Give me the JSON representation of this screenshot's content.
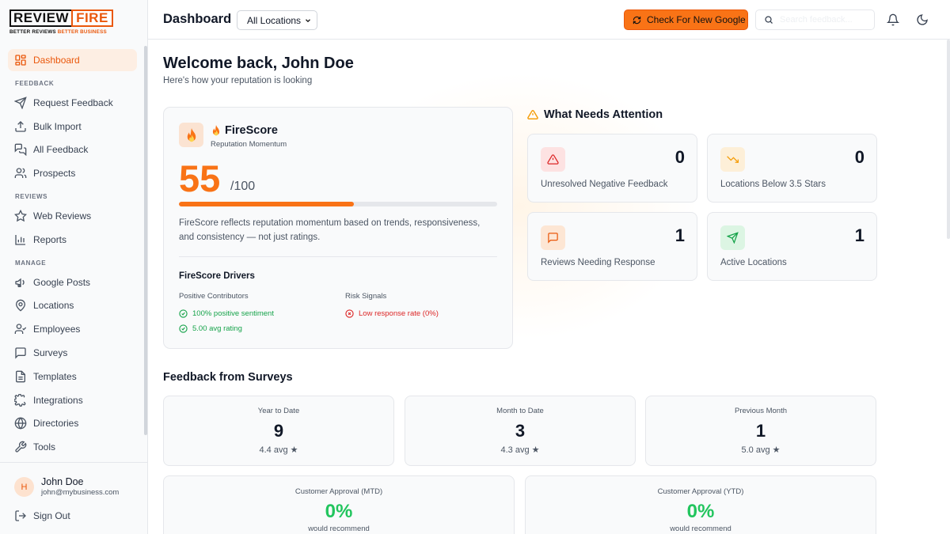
{
  "brand": {
    "logo_left": "REVIEW",
    "logo_right": "FIRE",
    "tagline_black": "BETTER REVIEWS",
    "tagline_orange": "BETTER BUSINESS",
    "accent": "#f97316"
  },
  "sidebar": {
    "dashboard": "Dashboard",
    "sections": {
      "feedback": "FEEDBACK",
      "reviews": "REVIEWS",
      "manage": "MANAGE"
    },
    "feedback_items": [
      {
        "label": "Request Feedback",
        "icon": "send-icon"
      },
      {
        "label": "Bulk Import",
        "icon": "upload-icon"
      },
      {
        "label": "All Feedback",
        "icon": "chat-bubbles-icon"
      },
      {
        "label": "Prospects",
        "icon": "users-icon"
      }
    ],
    "reviews_items": [
      {
        "label": "Web Reviews",
        "icon": "star-icon"
      },
      {
        "label": "Reports",
        "icon": "bar-chart-icon"
      }
    ],
    "manage_items": [
      {
        "label": "Google Posts",
        "icon": "megaphone-icon"
      },
      {
        "label": "Locations",
        "icon": "map-pin-icon"
      },
      {
        "label": "Employees",
        "icon": "user-check-icon"
      },
      {
        "label": "Surveys",
        "icon": "message-square-icon"
      },
      {
        "label": "Templates",
        "icon": "file-text-icon"
      },
      {
        "label": "Integrations",
        "icon": "puzzle-icon"
      },
      {
        "label": "Directories",
        "icon": "globe-icon"
      },
      {
        "label": "Tools",
        "icon": "wrench-icon"
      }
    ],
    "user": {
      "initial": "H",
      "name": "John Doe",
      "email": "john@mybusiness.com"
    },
    "sign_out": "Sign Out"
  },
  "header": {
    "title": "Dashboard",
    "location_selected": "All Locations",
    "check_button": "Check For New Google",
    "search_placeholder": "Search feedback..."
  },
  "welcome": {
    "title": "Welcome back, John Doe",
    "subtitle": "Here's how your reputation is looking"
  },
  "firescore": {
    "title": "FireScore",
    "subtitle": "Reputation Momentum",
    "score": "55",
    "max": "/100",
    "progress": 0.55,
    "description": "FireScore reflects reputation momentum based on trends, responsiveness, and consistency — not just ratings.",
    "drivers_title": "FireScore Drivers",
    "positive_title": "Positive Contributors",
    "positive": [
      "100% positive sentiment",
      "5.00 avg rating"
    ],
    "risk_title": "Risk Signals",
    "risks": [
      "Low response rate (0%)"
    ]
  },
  "attention": {
    "title": "What Needs Attention",
    "cards": [
      {
        "label": "Unresolved Negative Feedback",
        "value": "0",
        "icon": "alert-triangle-icon"
      },
      {
        "label": "Locations Below 3.5 Stars",
        "value": "0",
        "icon": "trending-down-icon"
      },
      {
        "label": "Reviews Needing Response",
        "value": "1",
        "icon": "message-square-icon"
      },
      {
        "label": "Active Locations",
        "value": "1",
        "icon": "send-icon"
      }
    ]
  },
  "surveys": {
    "title": "Feedback from Surveys",
    "cards": [
      {
        "label": "Year to Date",
        "value": "9",
        "avg": "4.4 avg ★"
      },
      {
        "label": "Month to Date",
        "value": "3",
        "avg": "4.3 avg ★"
      },
      {
        "label": "Previous Month",
        "value": "1",
        "avg": "5.0 avg ★"
      }
    ],
    "approval": [
      {
        "label": "Customer Approval (MTD)",
        "value": "0%",
        "sub": "would recommend"
      },
      {
        "label": "Customer Approval (YTD)",
        "value": "0%",
        "sub": "would recommend"
      }
    ]
  }
}
